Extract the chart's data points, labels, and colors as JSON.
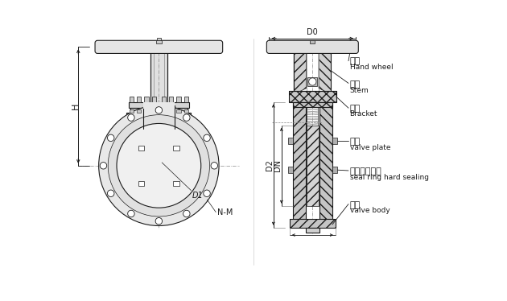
{
  "bg_color": "#ffffff",
  "line_color": "#1a1a1a",
  "gray_light": "#d8d8d8",
  "gray_mid": "#aaaaaa",
  "gray_dark": "#888888",
  "labels": {
    "handwheel_cn": "手轮",
    "handwheel_en": "Hand wheel",
    "stem_cn": "阀杆",
    "stem_en": "Stem",
    "bracket_cn": "支架",
    "bracket_en": "Bracket",
    "valve_plate_cn": "阀板",
    "valve_plate_en": "valve plate",
    "seal_ring_cn": "密封圈硬密封",
    "seal_ring_en": "seal ring hard sealing",
    "valve_body_cn": "阀体",
    "valve_body_en": "valve body",
    "D0": "D0",
    "D1": "D1",
    "D2": "D2",
    "DN": "DN",
    "H": "H",
    "NM": "N-M"
  },
  "font_size_cn": 8,
  "font_size_en": 6.5,
  "font_size_dim": 7
}
